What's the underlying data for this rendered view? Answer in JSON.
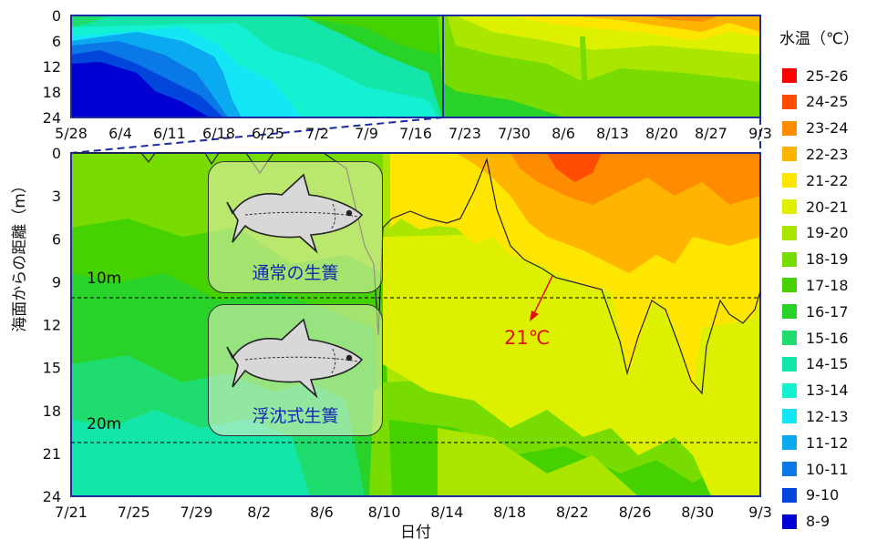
{
  "chart_data": [
    {
      "type": "heatmap",
      "name": "full-season",
      "x_categories": [
        "5/28",
        "6/4",
        "6/11",
        "6/18",
        "6/25",
        "7/2",
        "7/9",
        "7/16",
        "7/23",
        "7/30",
        "8/6",
        "8/13",
        "8/20",
        "8/27",
        "9/3"
      ],
      "y_ticks": [
        0,
        6,
        12,
        18,
        24
      ],
      "ylim": [
        0,
        24
      ],
      "approx_temperature_bands": [
        {
          "until": "6/18",
          "surface": "15-16",
          "bottom": "8-9"
        },
        {
          "until": "7/16",
          "surface": "17-18",
          "bottom": "12-13"
        },
        {
          "until": "8/6",
          "surface": "21-22",
          "bottom": "17-18"
        },
        {
          "until": "9/3",
          "surface": "23-24",
          "bottom": "19-20"
        }
      ]
    },
    {
      "type": "heatmap",
      "name": "zoom",
      "x_categories": [
        "7/21",
        "7/25",
        "7/29",
        "8/2",
        "8/6",
        "8/10",
        "8/14",
        "8/18",
        "8/22",
        "8/26",
        "8/30",
        "9/3"
      ],
      "xlabel": "日付",
      "ylabel": "海面からの距離（m）",
      "y_ticks": [
        0,
        3,
        6,
        9,
        12,
        15,
        18,
        21,
        24
      ],
      "ylim": [
        0,
        24
      ],
      "reference_lines": [
        {
          "depth": 10,
          "label": "10m"
        },
        {
          "depth": 20,
          "label": "20m"
        }
      ],
      "isotherm": {
        "label": "21℃",
        "points": [
          [
            0,
            0
          ],
          [
            2,
            0
          ],
          [
            3,
            0.5
          ],
          [
            4,
            0
          ],
          [
            5,
            0
          ],
          [
            6,
            0
          ],
          [
            7,
            2
          ],
          [
            8,
            0
          ],
          [
            9,
            0.5
          ],
          [
            10,
            1
          ],
          [
            11,
            0
          ],
          [
            12,
            0.3
          ],
          [
            13,
            0.5
          ],
          [
            14,
            0
          ],
          [
            15,
            0.2
          ],
          [
            16,
            2
          ],
          [
            17,
            4
          ],
          [
            18,
            6
          ],
          [
            19,
            10
          ],
          [
            20,
            12.5
          ],
          [
            21,
            5
          ],
          [
            22,
            6
          ],
          [
            23,
            5.5
          ],
          [
            24,
            6
          ],
          [
            25,
            5
          ],
          [
            26,
            5.5
          ],
          [
            27,
            5
          ],
          [
            28,
            5
          ],
          [
            29,
            3
          ],
          [
            30,
            0.5
          ],
          [
            31,
            5
          ],
          [
            32,
            7.5
          ],
          [
            33,
            9
          ],
          [
            34,
            9
          ],
          [
            35,
            9.5
          ],
          [
            36,
            10
          ],
          [
            37,
            10
          ],
          [
            38,
            9.5
          ],
          [
            39,
            10
          ],
          [
            40,
            13
          ],
          [
            41,
            15.5
          ],
          [
            42,
            15
          ],
          [
            43,
            13.5
          ],
          [
            44,
            10
          ],
          [
            45,
            12
          ],
          [
            46,
            14.5
          ],
          [
            47,
            15
          ],
          [
            48,
            16.5
          ],
          [
            49,
            10.5
          ],
          [
            50,
            11
          ],
          [
            51,
            12
          ],
          [
            52,
            11.5
          ],
          [
            53,
            10
          ],
          [
            54,
            9.5
          ]
        ]
      },
      "approx_temperature_bands": [
        {
          "until": "8/6",
          "surface": "19-20",
          "bottom": "15-16"
        },
        {
          "until": "8/14",
          "surface": "20-21",
          "bottom": "17-18"
        },
        {
          "until": "8/30",
          "surface": "22-24",
          "bottom": "19-20"
        },
        {
          "until": "9/3",
          "surface": "22-23",
          "bottom": "19-20"
        }
      ]
    }
  ],
  "legend": {
    "title": "水温（℃）",
    "items": [
      {
        "label": "25-26",
        "color": "#ff0000"
      },
      {
        "label": "24-25",
        "color": "#ff4c00"
      },
      {
        "label": "23-24",
        "color": "#ff8c00"
      },
      {
        "label": "22-23",
        "color": "#ffb400"
      },
      {
        "label": "21-22",
        "color": "#ffe600"
      },
      {
        "label": "20-21",
        "color": "#dcf000"
      },
      {
        "label": "19-20",
        "color": "#aae600"
      },
      {
        "label": "18-19",
        "color": "#78dc00"
      },
      {
        "label": "17-18",
        "color": "#46d200"
      },
      {
        "label": "16-17",
        "color": "#28d228"
      },
      {
        "label": "15-16",
        "color": "#1edc6e"
      },
      {
        "label": "14-15",
        "color": "#14e6aa"
      },
      {
        "label": "13-14",
        "color": "#14f0d2"
      },
      {
        "label": "12-13",
        "color": "#14e6f5"
      },
      {
        "label": "11-12",
        "color": "#0aaaf0"
      },
      {
        "label": "10-11",
        "color": "#0a78e6"
      },
      {
        "label": "9-10",
        "color": "#0046dc"
      },
      {
        "label": "8-9",
        "color": "#0000d2"
      }
    ]
  },
  "annotations": {
    "cage_normal": "通常の生簀",
    "cage_floating": "浮沈式生簀",
    "arrow_color": "#e01010",
    "ref_line_color": "#000000"
  }
}
